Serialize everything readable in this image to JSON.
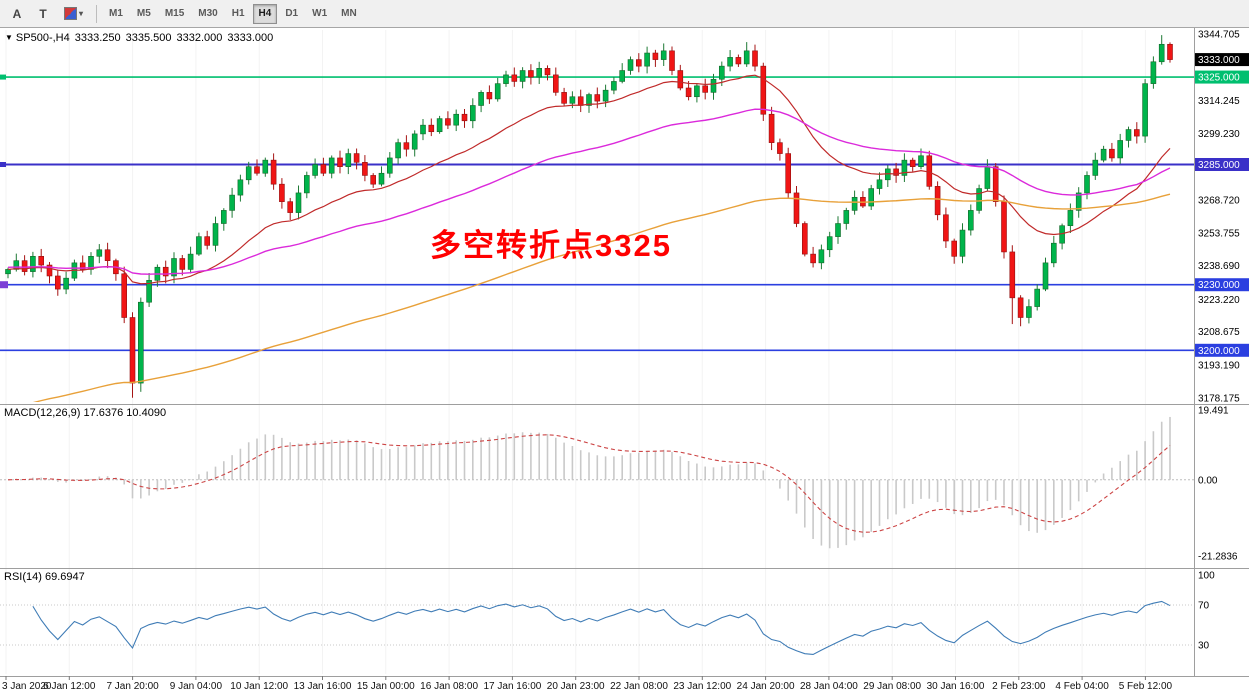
{
  "toolbar": {
    "tools": [
      {
        "id": "cursor",
        "label": "A"
      },
      {
        "id": "text",
        "label": "T"
      },
      {
        "id": "styles",
        "caret": "▾"
      }
    ],
    "timeframes": [
      {
        "label": "M1"
      },
      {
        "label": "M5"
      },
      {
        "label": "M15"
      },
      {
        "label": "M30"
      },
      {
        "label": "H1"
      },
      {
        "label": "H4"
      },
      {
        "label": "D1"
      },
      {
        "label": "W1"
      },
      {
        "label": "MN"
      }
    ],
    "active_timeframe": "H4"
  },
  "quote_bar": {
    "collapse_icon": "▼",
    "symbol": "SP500-,H4",
    "open": "3333.250",
    "high": "3335.500",
    "low": "3332.000",
    "close": "3333.000"
  },
  "annotation": {
    "text": "多空转折点3325",
    "color": "#FF0000"
  },
  "macd": {
    "label": "MACD(12,26,9)",
    "values": "17.6376 10.4090",
    "fast": 12,
    "slow": 26,
    "signal": 9,
    "axis_labels": [
      "19.491",
      "0.00",
      "-21.2836"
    ],
    "hist_color": "#C9C9C9",
    "signal_color": "#CC4444"
  },
  "rsi": {
    "label": "RSI(14)",
    "value": "69.6947",
    "period": 14,
    "levels": [
      "100",
      "70",
      "30"
    ],
    "color": "#3F7CB6"
  },
  "time_axis": {
    "labels": [
      "3 Jan 2020",
      "6 Jan 12:00",
      "7 Jan 20:00",
      "9 Jan 04:00",
      "10 Jan 12:00",
      "13 Jan 16:00",
      "15 Jan 00:00",
      "16 Jan 08:00",
      "17 Jan 16:00",
      "20 Jan 23:00",
      "22 Jan 08:00",
      "23 Jan 12:00",
      "24 Jan 20:00",
      "28 Jan 04:00",
      "29 Jan 08:00",
      "30 Jan 16:00",
      "2 Feb 23:00",
      "4 Feb 04:00",
      "5 Feb 12:00"
    ]
  },
  "chart_data": {
    "type": "candlestick",
    "symbol": "SP500-",
    "timeframe": "H4",
    "first_open": 3235,
    "closes": [
      3237,
      3241,
      3236,
      3243,
      3239,
      3234,
      3228,
      3233,
      3240,
      3237,
      3243,
      3246,
      3241,
      3235,
      3215,
      3185,
      3222,
      3232,
      3238,
      3234,
      3242,
      3237,
      3244,
      3252,
      3248,
      3258,
      3264,
      3271,
      3278,
      3284,
      3281,
      3287,
      3276,
      3268,
      3263,
      3272,
      3280,
      3285,
      3281,
      3288,
      3284,
      3290,
      3286,
      3280,
      3276,
      3281,
      3288,
      3295,
      3292,
      3299,
      3303,
      3300,
      3306,
      3303,
      3308,
      3305,
      3312,
      3318,
      3315,
      3322,
      3326,
      3323,
      3328,
      3325,
      3329,
      3326,
      3318,
      3313,
      3316,
      3312,
      3317,
      3314,
      3319,
      3323,
      3328,
      3333,
      3330,
      3336,
      3333,
      3337,
      3328,
      3320,
      3316,
      3321,
      3318,
      3324,
      3330,
      3334,
      3331,
      3337,
      3330,
      3308,
      3295,
      3290,
      3272,
      3258,
      3244,
      3240,
      3246,
      3252,
      3258,
      3264,
      3270,
      3266,
      3274,
      3278,
      3283,
      3280,
      3287,
      3284,
      3289,
      3275,
      3262,
      3250,
      3243,
      3255,
      3264,
      3274,
      3284,
      3268,
      3245,
      3224,
      3215,
      3220,
      3228,
      3240,
      3249,
      3257,
      3264,
      3272,
      3280,
      3287,
      3292,
      3288,
      3296,
      3301,
      3298,
      3322,
      3332,
      3340,
      3333
    ],
    "wick_overrides": {
      "15": {
        "low": 3178.3
      },
      "16": {
        "low": 3181
      },
      "89": {
        "high": 3341
      },
      "121": {
        "low": 3212
      },
      "122": {
        "low": 3211
      },
      "139": {
        "high": 3344.2
      }
    },
    "candle_up": "#00B44B",
    "candle_down": "#F01515",
    "price_axis": {
      "max": 3344.705,
      "min": 3178.175,
      "plain_labels": [
        "3344.705",
        "3314.245",
        "3299.230",
        "3268.720",
        "3253.755",
        "3238.690",
        "3223.220",
        "3208.675",
        "3193.190",
        "3178.175"
      ]
    },
    "current_price": {
      "value": 3333.0,
      "label": "3333.000"
    },
    "hlines": [
      {
        "price": 3325.0,
        "label": "3325.000",
        "color": "#00BF6F",
        "width": 1.6
      },
      {
        "price": 3285.0,
        "label": "3285.000",
        "color": "#3A30C8",
        "width": 2
      },
      {
        "price": 3230.0,
        "label": "3230.000",
        "color": "#2B3FE0",
        "width": 1.6
      },
      {
        "price": 3200.0,
        "label": "3200.000",
        "color": "#2B3FE0",
        "width": 1.6
      }
    ],
    "left_markers": [
      {
        "price": 3325,
        "color": "#00BF6F",
        "size": 5
      },
      {
        "price": 3285,
        "color": "#3A30C8",
        "size": 5
      },
      {
        "price": 3230,
        "color": "#7C3FD6",
        "size": 7
      }
    ],
    "moving_averages": [
      {
        "name": "fast-ma",
        "period": 21,
        "color": "#C02A2A",
        "width": 1.2
      },
      {
        "name": "medium-ma",
        "period": 55,
        "color": "#DB2ADB",
        "width": 1.4,
        "seed": 3238
      },
      {
        "name": "slow-ma",
        "period": 130,
        "color": "#E8A13A",
        "width": 1.4,
        "seed": 3172
      }
    ]
  }
}
